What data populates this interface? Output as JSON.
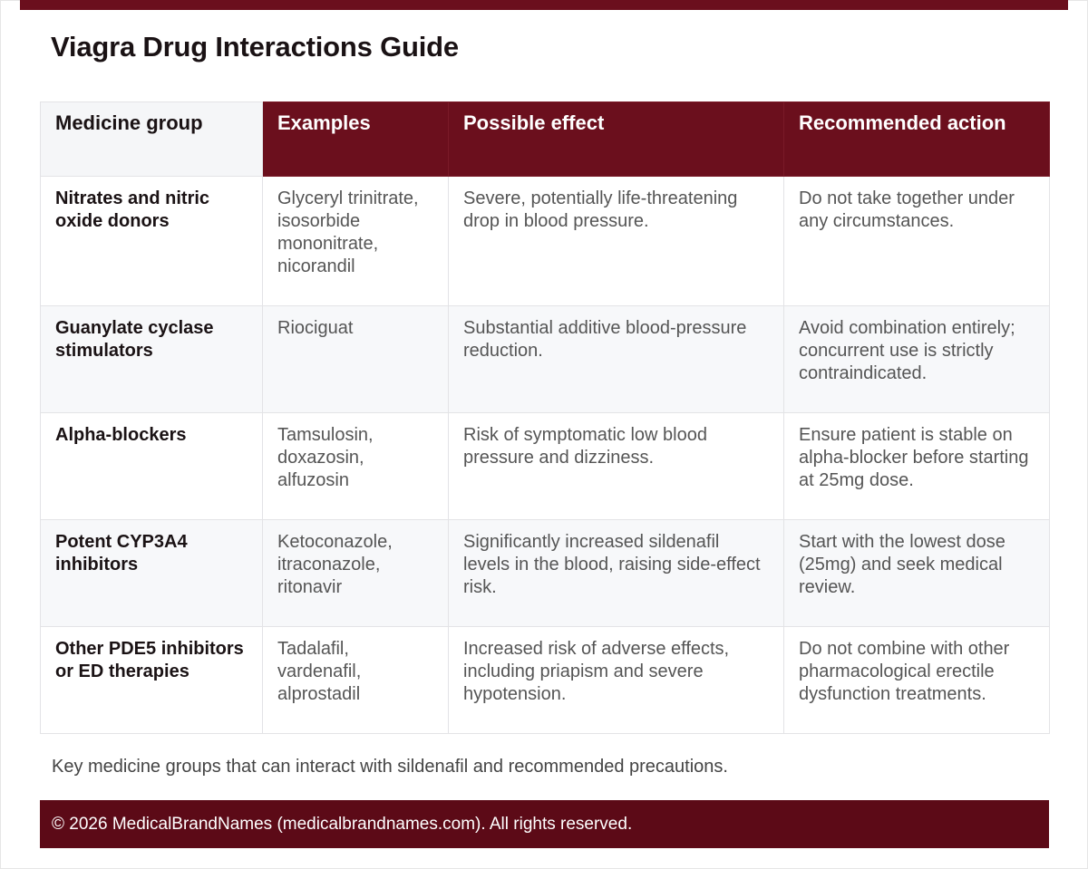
{
  "title": "Viagra Drug Interactions Guide",
  "table": {
    "headers": [
      "Medicine group",
      "Examples",
      "Possible effect",
      "Recommended action"
    ],
    "rows": [
      {
        "group": "Nitrates and nitric oxide donors",
        "examples": "Glyceryl trinitrate, isosorbide mononitrate, nicorandil",
        "effect": "Severe, potentially life-threatening drop in blood pressure.",
        "action": "Do not take together under any circumstances."
      },
      {
        "group": "Guanylate cyclase stimulators",
        "examples": "Riociguat",
        "effect": "Substantial additive blood-pressure reduction.",
        "action": "Avoid combination entirely; concurrent use is strictly contraindicated."
      },
      {
        "group": "Alpha-blockers",
        "examples": "Tamsulosin, doxazosin, alfuzosin",
        "effect": "Risk of symptomatic low blood pressure and dizziness.",
        "action": "Ensure patient is stable on alpha-blocker before starting at 25mg dose."
      },
      {
        "group": "Potent CYP3A4 inhibitors",
        "examples": "Ketoconazole, itraconazole, ritonavir",
        "effect": "Significantly increased sildenafil levels in the blood, raising side-effect risk.",
        "action": "Start with the lowest dose (25mg) and seek medical review."
      },
      {
        "group": "Other PDE5 inhibitors or ED therapies",
        "examples": "Tadalafil, vardenafil, alprostadil",
        "effect": "Increased risk of adverse effects, including priapism and severe hypotension.",
        "action": "Do not combine with other pharmacological erectile dysfunction treatments."
      }
    ]
  },
  "caption": "Key medicine groups that can interact with sildenafil and recommended precautions.",
  "footer": "© 2026 MedicalBrandNames (medicalbrandnames.com). All rights reserved.",
  "colors": {
    "accent": "#6b0f1d",
    "footer": "#5c0a17",
    "row_alt": "#f7f8fa"
  }
}
